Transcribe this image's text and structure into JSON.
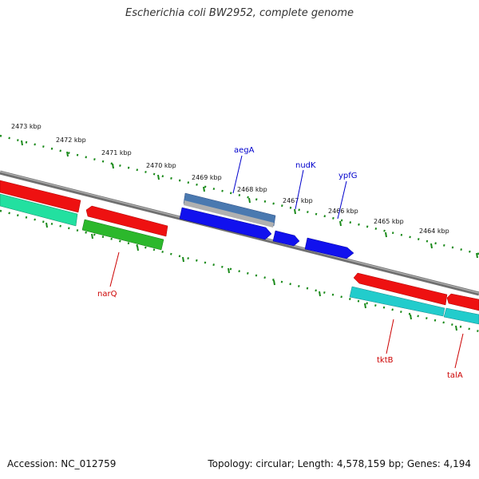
{
  "title": "Escherichia coli BW2952, complete genome",
  "accession_text": "Accession: NC_012759",
  "topology_text": "Topology: circular; Length: 4,578,159 bp; Genes: 4,194",
  "scale_labels": [
    "2473 kbp",
    "2472 kbp",
    "2471 kbp",
    "2470 kbp",
    "2469 kbp",
    "2468 kbp",
    "2467 kbp",
    "2466 kbp",
    "2465 kbp",
    "2464 kbp"
  ],
  "gene_labels": {
    "forward": [
      "aegA",
      "nudK",
      "ypfG"
    ],
    "reverse": [
      "narQ",
      "tktB",
      "talA"
    ]
  },
  "colors": {
    "backbone": "#808080",
    "tick": "#1a8a1a",
    "forward_label": "#0000cc",
    "reverse_label": "#cc0000",
    "cds_red": "#ee1111",
    "cds_blue": "#1111ee",
    "steel_blue": "#4a79b0",
    "gray": "#b0b0b0",
    "sea_green": "#22e0a0",
    "green": "#2cb82c",
    "cyan": "#22cccc"
  }
}
